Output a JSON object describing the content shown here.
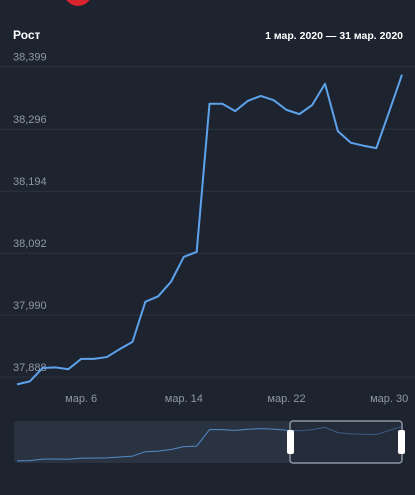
{
  "chart_data": {
    "type": "line",
    "title": "Рост",
    "subtitle": "1 мар. 2020 — 31 мар. 2020",
    "x": [
      1,
      2,
      3,
      4,
      5,
      6,
      7,
      8,
      9,
      10,
      11,
      12,
      13,
      14,
      15,
      16,
      17,
      18,
      19,
      20,
      21,
      22,
      23,
      24,
      25,
      26,
      27,
      28,
      29,
      30,
      31
    ],
    "series": [
      {
        "name": "Рост",
        "color": "#5ea2ec",
        "values": [
          37876,
          37881,
          37903,
          37904,
          37901,
          37918,
          37918,
          37921,
          37934,
          37946,
          38012,
          38021,
          38045,
          38086,
          38094,
          38338,
          38338,
          38326,
          38343,
          38351,
          38344,
          38328,
          38321,
          38336,
          38371,
          38293,
          38274,
          38269,
          38265,
          38325,
          38386
        ]
      }
    ],
    "xlim": [
      1,
      31
    ],
    "xticks": [
      {
        "value": 6,
        "label": "мар. 6"
      },
      {
        "value": 14,
        "label": "мар. 14"
      },
      {
        "value": 22,
        "label": "мар. 22"
      },
      {
        "value": 30,
        "label": "мар. 30"
      }
    ],
    "ylim": [
      37875,
      38420
    ],
    "yticks": [
      {
        "value": 37888,
        "label": "37,888"
      },
      {
        "value": 37990,
        "label": "37,990"
      },
      {
        "value": 38092,
        "label": "38,092"
      },
      {
        "value": 38194,
        "label": "38,194"
      },
      {
        "value": 38296,
        "label": "38,296"
      },
      {
        "value": 38399,
        "label": "38,399"
      }
    ],
    "grid": true
  }
}
